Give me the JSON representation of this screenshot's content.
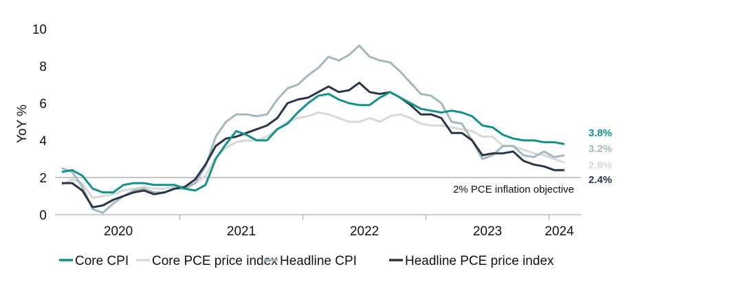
{
  "chart_data": {
    "type": "line",
    "title": "",
    "xlabel": "",
    "ylabel": "YoY %",
    "ylim": [
      0,
      10
    ],
    "yticks": [
      "0",
      "2",
      "4",
      "6",
      "8",
      "10"
    ],
    "x_start": "2020-01",
    "x_end": "2024-02",
    "year_labels": [
      "2020",
      "2021",
      "2022",
      "2023",
      "2024"
    ],
    "reference_line": {
      "value": 2,
      "label": "2% PCE inflation objective"
    },
    "series": [
      {
        "name": "Core CPI",
        "color": "#11918a",
        "end_label": "3.8%",
        "values": [
          2.3,
          2.4,
          2.1,
          1.4,
          1.2,
          1.2,
          1.6,
          1.7,
          1.7,
          1.6,
          1.6,
          1.6,
          1.4,
          1.3,
          1.6,
          3.0,
          3.8,
          4.5,
          4.3,
          4.0,
          4.0,
          4.6,
          4.9,
          5.5,
          6.0,
          6.4,
          6.5,
          6.2,
          6.0,
          5.9,
          5.9,
          6.3,
          6.6,
          6.3,
          6.0,
          5.7,
          5.6,
          5.5,
          5.6,
          5.5,
          5.3,
          4.8,
          4.7,
          4.3,
          4.1,
          4.0,
          4.0,
          3.9,
          3.9,
          3.8
        ]
      },
      {
        "name": "Core PCE price index",
        "color": "#d8d8d4",
        "end_label": "2.8%",
        "values": [
          1.6,
          1.9,
          1.7,
          0.9,
          1.0,
          1.1,
          1.3,
          1.4,
          1.5,
          1.4,
          1.4,
          1.5,
          1.5,
          1.7,
          2.1,
          3.1,
          3.6,
          3.9,
          4.0,
          4.0,
          4.2,
          4.6,
          5.0,
          5.2,
          5.3,
          5.5,
          5.4,
          5.2,
          5.0,
          5.0,
          5.2,
          5.0,
          5.3,
          5.4,
          5.2,
          4.9,
          4.8,
          4.8,
          4.7,
          4.6,
          4.5,
          4.2,
          4.2,
          3.7,
          3.7,
          3.5,
          3.3,
          3.2,
          3.0,
          2.8
        ]
      },
      {
        "name": "Headline CPI",
        "color": "#a3b8be",
        "end_label": "3.2%",
        "values": [
          2.5,
          2.3,
          1.5,
          0.3,
          0.1,
          0.6,
          1.0,
          1.3,
          1.4,
          1.2,
          1.2,
          1.4,
          1.4,
          1.7,
          2.6,
          4.2,
          5.0,
          5.4,
          5.4,
          5.3,
          5.4,
          6.2,
          6.8,
          7.0,
          7.5,
          7.9,
          8.5,
          8.3,
          8.6,
          9.1,
          8.5,
          8.3,
          8.2,
          7.7,
          7.1,
          6.5,
          6.4,
          6.0,
          5.0,
          4.9,
          4.0,
          3.0,
          3.2,
          3.7,
          3.7,
          3.2,
          3.1,
          3.4,
          3.1,
          3.2
        ]
      },
      {
        "name": "Headline PCE price index",
        "color": "#2a3447",
        "end_label": "2.4%",
        "values": [
          1.7,
          1.7,
          1.3,
          0.4,
          0.5,
          0.8,
          1.0,
          1.2,
          1.3,
          1.1,
          1.2,
          1.4,
          1.5,
          1.9,
          2.7,
          3.7,
          4.1,
          4.2,
          4.4,
          4.6,
          4.8,
          5.2,
          6.0,
          6.2,
          6.3,
          6.6,
          6.9,
          6.6,
          6.7,
          7.1,
          6.6,
          6.5,
          6.6,
          6.3,
          5.9,
          5.4,
          5.4,
          5.2,
          4.4,
          4.4,
          4.0,
          3.2,
          3.3,
          3.3,
          3.4,
          2.9,
          2.7,
          2.6,
          2.4,
          2.4
        ]
      }
    ]
  }
}
